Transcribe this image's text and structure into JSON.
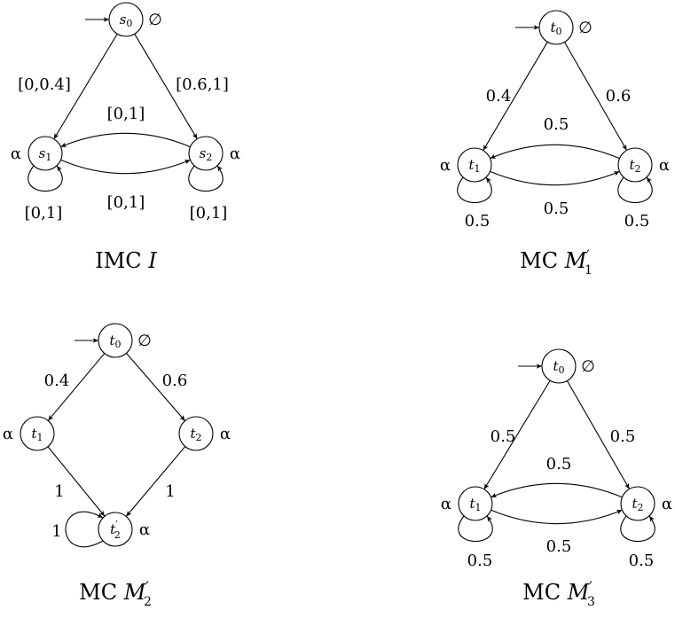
{
  "diagrams": [
    {
      "caption": {
        "prefix": "IMC",
        "name": "I",
        "sub": "",
        "prime": false
      },
      "states": [
        {
          "id": "s0",
          "base": "s",
          "sub": "0",
          "prime": false,
          "labelText": "∅",
          "labelSide": "right",
          "initial": true
        },
        {
          "id": "s1",
          "base": "s",
          "sub": "1",
          "prime": false,
          "labelText": "α",
          "labelSide": "left",
          "initial": false
        },
        {
          "id": "s2",
          "base": "s",
          "sub": "2",
          "prime": false,
          "labelText": "α",
          "labelSide": "right",
          "initial": false
        }
      ],
      "transitions": [
        {
          "from": "s0",
          "to": "s1",
          "label": "[0,0.4]"
        },
        {
          "from": "s0",
          "to": "s2",
          "label": "[0.6,1]"
        },
        {
          "from": "s2",
          "to": "s1",
          "label": "[0,1]"
        },
        {
          "from": "s1",
          "to": "s2",
          "label": "[0,1]"
        },
        {
          "from": "s1",
          "to": "s1",
          "label": "[0,1]"
        },
        {
          "from": "s2",
          "to": "s2",
          "label": "[0,1]"
        }
      ]
    },
    {
      "caption": {
        "prefix": "MC",
        "name": "M",
        "sub": "1",
        "prime": true
      },
      "states": [
        {
          "id": "t0",
          "base": "t",
          "sub": "0",
          "prime": false,
          "labelText": "∅",
          "labelSide": "right",
          "initial": true
        },
        {
          "id": "t1",
          "base": "t",
          "sub": "1",
          "prime": false,
          "labelText": "α",
          "labelSide": "left",
          "initial": false
        },
        {
          "id": "t2",
          "base": "t",
          "sub": "2",
          "prime": false,
          "labelText": "α",
          "labelSide": "right",
          "initial": false
        }
      ],
      "transitions": [
        {
          "from": "t0",
          "to": "t1",
          "label": "0.4"
        },
        {
          "from": "t0",
          "to": "t2",
          "label": "0.6"
        },
        {
          "from": "t2",
          "to": "t1",
          "label": "0.5"
        },
        {
          "from": "t1",
          "to": "t2",
          "label": "0.5"
        },
        {
          "from": "t1",
          "to": "t1",
          "label": "0.5"
        },
        {
          "from": "t2",
          "to": "t2",
          "label": "0.5"
        }
      ]
    },
    {
      "caption": {
        "prefix": "MC",
        "name": "M",
        "sub": "2",
        "prime": true
      },
      "states": [
        {
          "id": "t0",
          "base": "t",
          "sub": "0",
          "prime": false,
          "labelText": "∅",
          "labelSide": "right",
          "initial": true
        },
        {
          "id": "t1",
          "base": "t",
          "sub": "1",
          "prime": false,
          "labelText": "α",
          "labelSide": "left",
          "initial": false
        },
        {
          "id": "t2",
          "base": "t",
          "sub": "2",
          "prime": false,
          "labelText": "α",
          "labelSide": "right",
          "initial": false
        },
        {
          "id": "t2p",
          "base": "t",
          "sub": "2",
          "prime": true,
          "labelText": "α",
          "labelSide": "right",
          "initial": false
        }
      ],
      "transitions": [
        {
          "from": "t0",
          "to": "t1",
          "label": "0.4"
        },
        {
          "from": "t0",
          "to": "t2",
          "label": "0.6"
        },
        {
          "from": "t1",
          "to": "t2p",
          "label": "1"
        },
        {
          "from": "t2",
          "to": "t2p",
          "label": "1"
        },
        {
          "from": "t2p",
          "to": "t2p",
          "label": "1"
        }
      ]
    },
    {
      "caption": {
        "prefix": "MC",
        "name": "M",
        "sub": "3",
        "prime": true
      },
      "states": [
        {
          "id": "t0",
          "base": "t",
          "sub": "0",
          "prime": false,
          "labelText": "∅",
          "labelSide": "right",
          "initial": true
        },
        {
          "id": "t1",
          "base": "t",
          "sub": "1",
          "prime": false,
          "labelText": "α",
          "labelSide": "left",
          "initial": false
        },
        {
          "id": "t2",
          "base": "t",
          "sub": "2",
          "prime": false,
          "labelText": "α",
          "labelSide": "right",
          "initial": false
        }
      ],
      "transitions": [
        {
          "from": "t0",
          "to": "t1",
          "label": "0.5"
        },
        {
          "from": "t0",
          "to": "t2",
          "label": "0.5"
        },
        {
          "from": "t2",
          "to": "t1",
          "label": "0.5"
        },
        {
          "from": "t1",
          "to": "t2",
          "label": "0.5"
        },
        {
          "from": "t1",
          "to": "t1",
          "label": "0.5"
        },
        {
          "from": "t2",
          "to": "t2",
          "label": "0.5"
        }
      ]
    }
  ]
}
